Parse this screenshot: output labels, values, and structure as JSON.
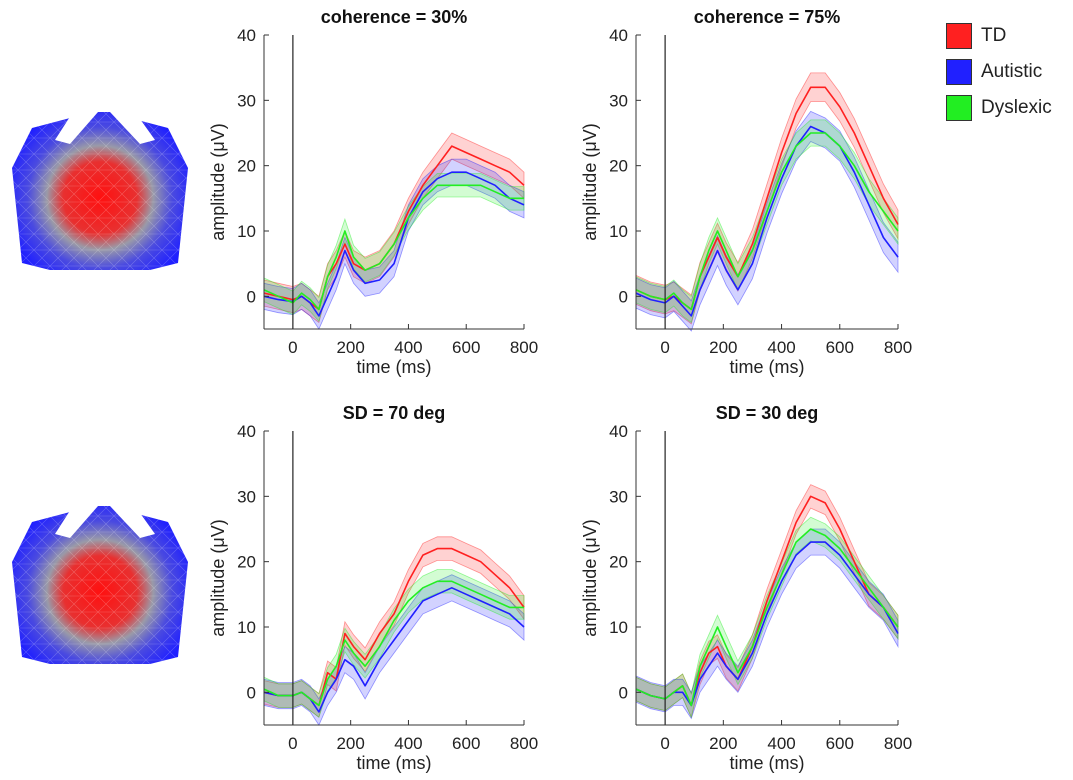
{
  "legend": [
    {
      "label": "TD",
      "color": "#ff2020"
    },
    {
      "label": "Autistic",
      "color": "#2020ff"
    },
    {
      "label": "Dyslexic",
      "color": "#22ee22"
    }
  ],
  "chart_data": [
    {
      "type": "line",
      "title": "coherence = 30%",
      "xlabel": "time (ms)",
      "ylabel": "amplitude (μV)",
      "xlim": [
        -100,
        800
      ],
      "ylim": [
        -5,
        40
      ],
      "xticks": [
        0,
        200,
        400,
        600,
        800
      ],
      "yticks": [
        0,
        10,
        20,
        30,
        40
      ],
      "x": [
        -100,
        -50,
        0,
        30,
        60,
        90,
        120,
        150,
        180,
        210,
        250,
        300,
        350,
        400,
        450,
        500,
        550,
        600,
        650,
        700,
        750,
        800
      ],
      "series": [
        {
          "name": "TD",
          "color": "#ff2020",
          "band": 2.0,
          "values": [
            0.5,
            0,
            -0.5,
            0,
            -1,
            -2,
            3,
            5,
            8,
            5,
            4,
            5,
            8,
            13,
            17,
            20,
            23,
            22,
            21,
            20,
            19,
            17
          ]
        },
        {
          "name": "Autistic",
          "color": "#2020ff",
          "band": 2.0,
          "values": [
            0,
            -0.5,
            -0.8,
            0,
            -1,
            -3,
            0,
            3,
            7,
            4,
            2,
            2.5,
            5,
            12,
            16,
            18,
            19,
            19,
            18,
            17,
            15,
            14
          ]
        },
        {
          "name": "Dyslexic",
          "color": "#22ee22",
          "band": 1.8,
          "values": [
            1,
            0,
            -1,
            0.5,
            -0.5,
            -2,
            3,
            6,
            10,
            6,
            4,
            5,
            8,
            12,
            15,
            17,
            17,
            17,
            17,
            16,
            15,
            15
          ]
        }
      ]
    },
    {
      "type": "line",
      "title": "coherence = 75%",
      "xlabel": "time (ms)",
      "ylabel": "amplitude (μV)",
      "xlim": [
        -100,
        800
      ],
      "ylim": [
        -5,
        40
      ],
      "xticks": [
        0,
        200,
        400,
        600,
        800
      ],
      "yticks": [
        0,
        10,
        20,
        30,
        40
      ],
      "x": [
        -100,
        -50,
        0,
        30,
        60,
        90,
        120,
        150,
        180,
        210,
        250,
        300,
        350,
        400,
        450,
        500,
        550,
        600,
        650,
        700,
        750,
        800
      ],
      "series": [
        {
          "name": "TD",
          "color": "#ff2020",
          "band": 2.2,
          "values": [
            1,
            0,
            -0.5,
            0,
            -1,
            -2,
            3,
            6,
            9,
            6,
            3,
            8,
            15,
            22,
            28,
            32,
            32,
            29,
            25,
            20,
            15,
            11
          ]
        },
        {
          "name": "Autistic",
          "color": "#2020ff",
          "band": 2.3,
          "values": [
            0.5,
            -0.5,
            -1,
            0,
            -1.5,
            -3,
            1,
            4,
            7,
            4,
            1,
            5,
            12,
            18,
            23,
            26,
            25,
            23,
            19,
            14,
            9,
            6
          ]
        },
        {
          "name": "Dyslexic",
          "color": "#22ee22",
          "band": 2.0,
          "values": [
            1,
            0,
            -0.5,
            0.5,
            -1,
            -2,
            3,
            7,
            10,
            7,
            3,
            7,
            13,
            19,
            23,
            25,
            25,
            23,
            20,
            16,
            13,
            10
          ]
        }
      ]
    },
    {
      "type": "line",
      "title": "SD = 70 deg",
      "xlabel": "time (ms)",
      "ylabel": "amplitude (μV)",
      "xlim": [
        -100,
        800
      ],
      "ylim": [
        -5,
        40
      ],
      "xticks": [
        0,
        200,
        400,
        600,
        800
      ],
      "yticks": [
        0,
        10,
        20,
        30,
        40
      ],
      "x": [
        -100,
        -50,
        0,
        30,
        60,
        90,
        120,
        150,
        180,
        210,
        250,
        300,
        350,
        400,
        450,
        500,
        550,
        600,
        650,
        700,
        750,
        800
      ],
      "series": [
        {
          "name": "TD",
          "color": "#ff2020",
          "band": 1.8,
          "values": [
            0,
            -0.5,
            -0.5,
            0,
            -1,
            -2,
            3,
            2,
            9,
            7,
            5,
            9,
            12,
            17,
            21,
            22,
            22,
            21,
            20,
            18,
            16,
            13
          ]
        },
        {
          "name": "Autistic",
          "color": "#2020ff",
          "band": 2.0,
          "values": [
            0,
            -0.5,
            -0.5,
            0,
            -1,
            -3,
            0,
            2,
            5,
            4,
            1,
            5,
            8,
            11,
            14,
            15,
            16,
            15,
            14,
            13,
            12,
            10
          ]
        },
        {
          "name": "Dyslexic",
          "color": "#22ee22",
          "band": 1.8,
          "values": [
            0.5,
            -0.5,
            -0.5,
            0,
            -1,
            -2,
            2,
            4,
            8,
            6,
            4,
            7,
            11,
            14,
            16,
            17,
            17,
            16,
            15,
            14,
            13,
            13
          ]
        }
      ]
    },
    {
      "type": "line",
      "title": "SD = 30 deg",
      "xlabel": "time (ms)",
      "ylabel": "amplitude (μV)",
      "xlim": [
        -100,
        800
      ],
      "ylim": [
        -5,
        40
      ],
      "xticks": [
        0,
        200,
        400,
        600,
        800
      ],
      "yticks": [
        0,
        10,
        20,
        30,
        40
      ],
      "x": [
        -100,
        -50,
        0,
        30,
        60,
        90,
        120,
        150,
        180,
        210,
        250,
        300,
        350,
        400,
        450,
        500,
        550,
        600,
        650,
        700,
        750,
        800
      ],
      "series": [
        {
          "name": "TD",
          "color": "#ff2020",
          "band": 1.8,
          "values": [
            0.5,
            -0.5,
            -1,
            0,
            1,
            -2,
            3,
            6,
            7,
            4,
            2,
            7,
            14,
            20,
            26,
            30,
            29,
            25,
            20,
            15,
            13,
            10
          ]
        },
        {
          "name": "Autistic",
          "color": "#2020ff",
          "band": 2.0,
          "values": [
            0.5,
            -0.5,
            -1,
            0,
            0,
            -2,
            2,
            4,
            6,
            4,
            2,
            6,
            12,
            17,
            21,
            23,
            23,
            21,
            18,
            15,
            13,
            9
          ]
        },
        {
          "name": "Dyslexic",
          "color": "#22ee22",
          "band": 1.8,
          "values": [
            0.5,
            -0.5,
            -1,
            0,
            1,
            -2,
            4,
            7,
            10,
            7,
            3,
            7,
            13,
            18,
            23,
            25,
            24,
            22,
            19,
            16,
            13,
            10
          ]
        }
      ]
    }
  ]
}
